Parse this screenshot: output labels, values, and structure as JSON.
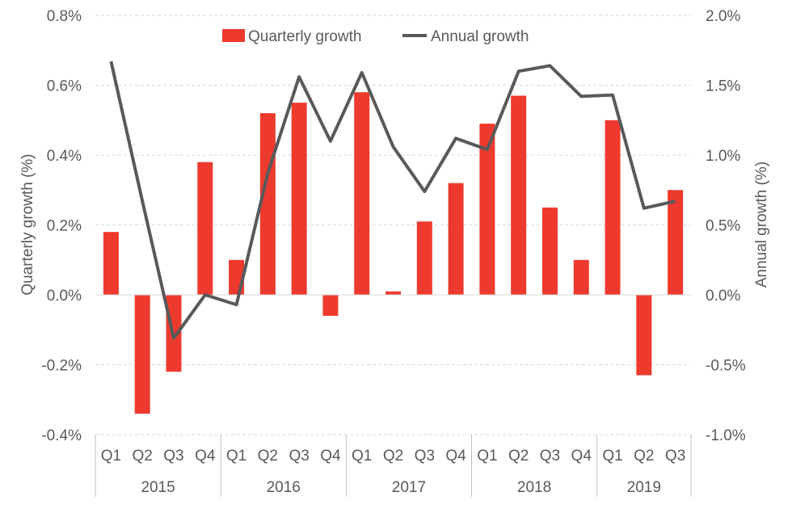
{
  "chart_data": {
    "type": "bar+line",
    "title": "",
    "years": [
      "2015",
      "2016",
      "2017",
      "2018",
      "2019"
    ],
    "quarters": [
      "Q1",
      "Q2",
      "Q3",
      "Q4",
      "Q1",
      "Q2",
      "Q3",
      "Q4",
      "Q1",
      "Q2",
      "Q3",
      "Q4",
      "Q1",
      "Q2",
      "Q3",
      "Q4",
      "Q1",
      "Q2",
      "Q3"
    ],
    "year_spans": [
      4,
      4,
      4,
      4,
      3
    ],
    "series": [
      {
        "name": "Quarterly growth",
        "type": "bar",
        "axis": "left",
        "color": "#ee3a2e",
        "values": [
          0.18,
          -0.34,
          -0.22,
          0.38,
          0.1,
          0.52,
          0.55,
          -0.06,
          0.58,
          0.01,
          0.21,
          0.32,
          0.49,
          0.57,
          0.25,
          0.1,
          0.5,
          -0.23,
          0.3
        ]
      },
      {
        "name": "Annual growth",
        "type": "line",
        "axis": "right",
        "color": "#595959",
        "values": [
          1.67,
          0.67,
          -0.31,
          0.0,
          -0.07,
          0.87,
          1.56,
          1.1,
          1.59,
          1.06,
          0.74,
          1.12,
          1.04,
          1.6,
          1.64,
          1.42,
          1.43,
          0.62,
          0.67
        ]
      }
    ],
    "y_left": {
      "label": "Quarterly growth (%)",
      "min": -0.4,
      "max": 0.8,
      "step": 0.2,
      "ticks": [
        "-0.4%",
        "-0.2%",
        "0.0%",
        "0.2%",
        "0.4%",
        "0.6%",
        "0.8%"
      ]
    },
    "y_right": {
      "label": "Annual growth (%)",
      "min": -1.0,
      "max": 2.0,
      "step": 0.5,
      "ticks": [
        "-1.0%",
        "-0.5%",
        "0.0%",
        "0.5%",
        "1.0%",
        "1.5%",
        "2.0%"
      ]
    },
    "legend": {
      "position": "top-center",
      "items": [
        "Quarterly growth",
        "Annual growth"
      ]
    },
    "grid": true
  }
}
